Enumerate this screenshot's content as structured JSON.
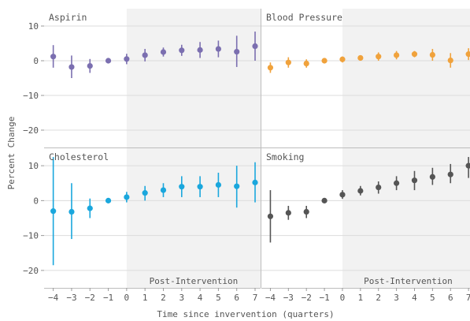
{
  "chart_data": {
    "type": "scatter",
    "subtype": "point-range (estimate with error bars), faceted 2x2",
    "xlabel": "Time since invervention (quarters)",
    "ylabel": "Percent Change",
    "x_ticks": [
      -4,
      -3,
      -2,
      -1,
      0,
      1,
      2,
      3,
      4,
      5,
      6,
      7
    ],
    "y_ticks": [
      -20,
      -10,
      0,
      10
    ],
    "ylim": [
      -25,
      15
    ],
    "xlim": [
      -4.5,
      7.3
    ],
    "grid": true,
    "shaded_region": {
      "from_x": 0,
      "label": "Post-Intervention"
    },
    "panels": [
      {
        "title": "Aspirin",
        "color": "#7b6fb0",
        "x": [
          -4,
          -3,
          -2,
          -1,
          0,
          1,
          2,
          3,
          4,
          5,
          6,
          7
        ],
        "estimate": [
          1.2,
          -1.8,
          -1.5,
          0.0,
          0.5,
          1.6,
          2.5,
          3.0,
          3.1,
          3.4,
          2.6,
          4.2
        ],
        "lower": [
          -2.0,
          -5.0,
          -3.5,
          -0.3,
          -1.0,
          -0.2,
          1.2,
          1.4,
          0.8,
          1.0,
          -1.8,
          0.0
        ],
        "upper": [
          4.5,
          1.5,
          0.5,
          0.3,
          2.0,
          3.4,
          3.8,
          4.6,
          5.4,
          5.8,
          7.2,
          8.4
        ]
      },
      {
        "title": "Blood Pressure",
        "color": "#f0a23c",
        "x": [
          -4,
          -3,
          -2,
          -1,
          0,
          1,
          2,
          3,
          4,
          5,
          6,
          7
        ],
        "estimate": [
          -2.0,
          -0.5,
          -0.8,
          0.0,
          0.4,
          0.8,
          1.2,
          1.6,
          1.9,
          1.7,
          0.1,
          1.9
        ],
        "lower": [
          -3.5,
          -2.0,
          -2.0,
          -0.3,
          -0.5,
          0.0,
          0.0,
          0.4,
          1.0,
          0.0,
          -2.0,
          0.2
        ],
        "upper": [
          -0.5,
          1.0,
          0.4,
          0.3,
          1.2,
          1.6,
          2.4,
          2.8,
          2.8,
          3.4,
          2.2,
          3.6
        ]
      },
      {
        "title": "Cholesterol",
        "color": "#1aa7dd",
        "x": [
          -4,
          -3,
          -2,
          -1,
          0,
          1,
          2,
          3,
          4,
          5,
          6,
          7
        ],
        "estimate": [
          -3.0,
          -3.2,
          -2.2,
          0.0,
          1.0,
          2.2,
          3.0,
          4.0,
          4.0,
          4.5,
          4.1,
          5.2
        ],
        "lower": [
          -18.5,
          -11.0,
          -5.0,
          -0.3,
          -0.5,
          0.0,
          1.0,
          1.0,
          1.0,
          1.0,
          -2.0,
          -0.5
        ],
        "upper": [
          12.5,
          5.0,
          0.6,
          0.3,
          2.5,
          4.2,
          5.0,
          7.0,
          7.0,
          8.0,
          10.0,
          11.0
        ]
      },
      {
        "title": "Smoking",
        "color": "#555555",
        "x": [
          -4,
          -3,
          -2,
          -1,
          0,
          1,
          2,
          3,
          4,
          5,
          6,
          7
        ],
        "estimate": [
          -4.5,
          -3.5,
          -3.2,
          0.0,
          1.7,
          2.8,
          3.8,
          5.0,
          5.8,
          6.8,
          7.5,
          10.0
        ],
        "lower": [
          -12.0,
          -5.5,
          -5.0,
          -0.3,
          0.5,
          1.5,
          2.0,
          3.0,
          3.0,
          4.5,
          5.0,
          6.5
        ],
        "upper": [
          3.0,
          -1.5,
          -1.5,
          0.3,
          3.0,
          4.2,
          5.5,
          7.0,
          8.5,
          9.4,
          10.5,
          12.5
        ]
      }
    ]
  }
}
